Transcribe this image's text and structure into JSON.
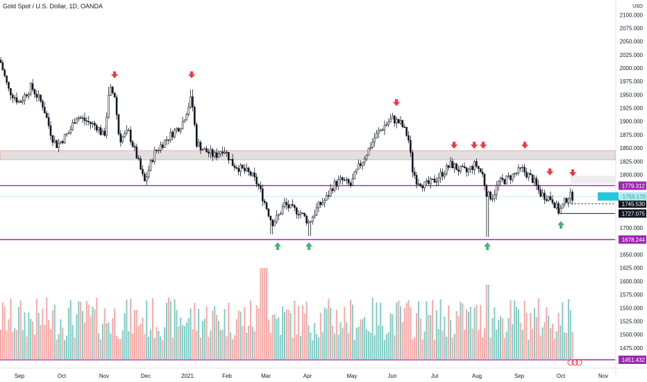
{
  "header": {
    "symbol_title": "Gold Spot / U.S. Dollar, 1D, OANDA"
  },
  "axis": {
    "currency": "USD",
    "price_ticks": [
      2100,
      2075,
      2050,
      2025,
      2000,
      1975,
      1950,
      1925,
      1900,
      1875,
      1850,
      1825,
      1800,
      1775,
      1750,
      1725,
      1700,
      1675,
      1650,
      1625,
      1600,
      1575,
      1550,
      1525,
      1500,
      1475
    ],
    "time_labels": [
      "Sep",
      "Oct",
      "Nov",
      "Dec",
      "2021",
      "Feb",
      "Mar",
      "Apr",
      "May",
      "Jun",
      "Jul",
      "Aug",
      "Sep",
      "Oct",
      "Nov"
    ]
  },
  "price_tags": {
    "resistance": "1779.312",
    "current_cyan": "1759.170",
    "dashed": "1745.530",
    "low_line": "1727.075",
    "support": "1678.244",
    "bottom": "1451.432"
  },
  "colors": {
    "up_candle": "#131722",
    "down_candle": "#131722",
    "volume_up": "#80cbc4",
    "volume_down": "#f7a9a7",
    "sell_arrow": "#f23645",
    "buy_arrow": "#4caf7d",
    "level_line": "#9c27b0",
    "zone_fill": "#e0e0e0",
    "zone_border": "#ef9a9a",
    "cyan_tag": "#26c6da"
  },
  "chart_data": {
    "type": "candlestick",
    "instrument": "XAU/USD",
    "timeframe": "1D",
    "ylim": [
      1450,
      2110
    ],
    "close_series_approx": [
      {
        "month": "Sep 2020",
        "close": 1900
      },
      {
        "month": "Oct 2020",
        "close": 1885
      },
      {
        "month": "Nov 2020",
        "close": 1780
      },
      {
        "month": "Dec 2020",
        "close": 1895
      },
      {
        "month": "Jan 2021",
        "close": 1850
      },
      {
        "month": "Feb 2021",
        "close": 1735
      },
      {
        "month": "Mar 2021",
        "close": 1710
      },
      {
        "month": "Apr 2021",
        "close": 1770
      },
      {
        "month": "May 2021",
        "close": 1905
      },
      {
        "month": "Jun 2021",
        "close": 1770
      },
      {
        "month": "Jul 2021",
        "close": 1815
      },
      {
        "month": "Aug 2021",
        "close": 1815
      },
      {
        "month": "Sep 2021",
        "close": 1745
      },
      {
        "month": "Oct 2021",
        "close": 1759
      }
    ],
    "horizontal_levels": [
      1779.312,
      1678.244,
      1745.53,
      1727.075
    ],
    "supply_zone": [
      1828,
      1845
    ],
    "annotations": {
      "sell_arrows": 9,
      "buy_arrows": 4
    }
  }
}
